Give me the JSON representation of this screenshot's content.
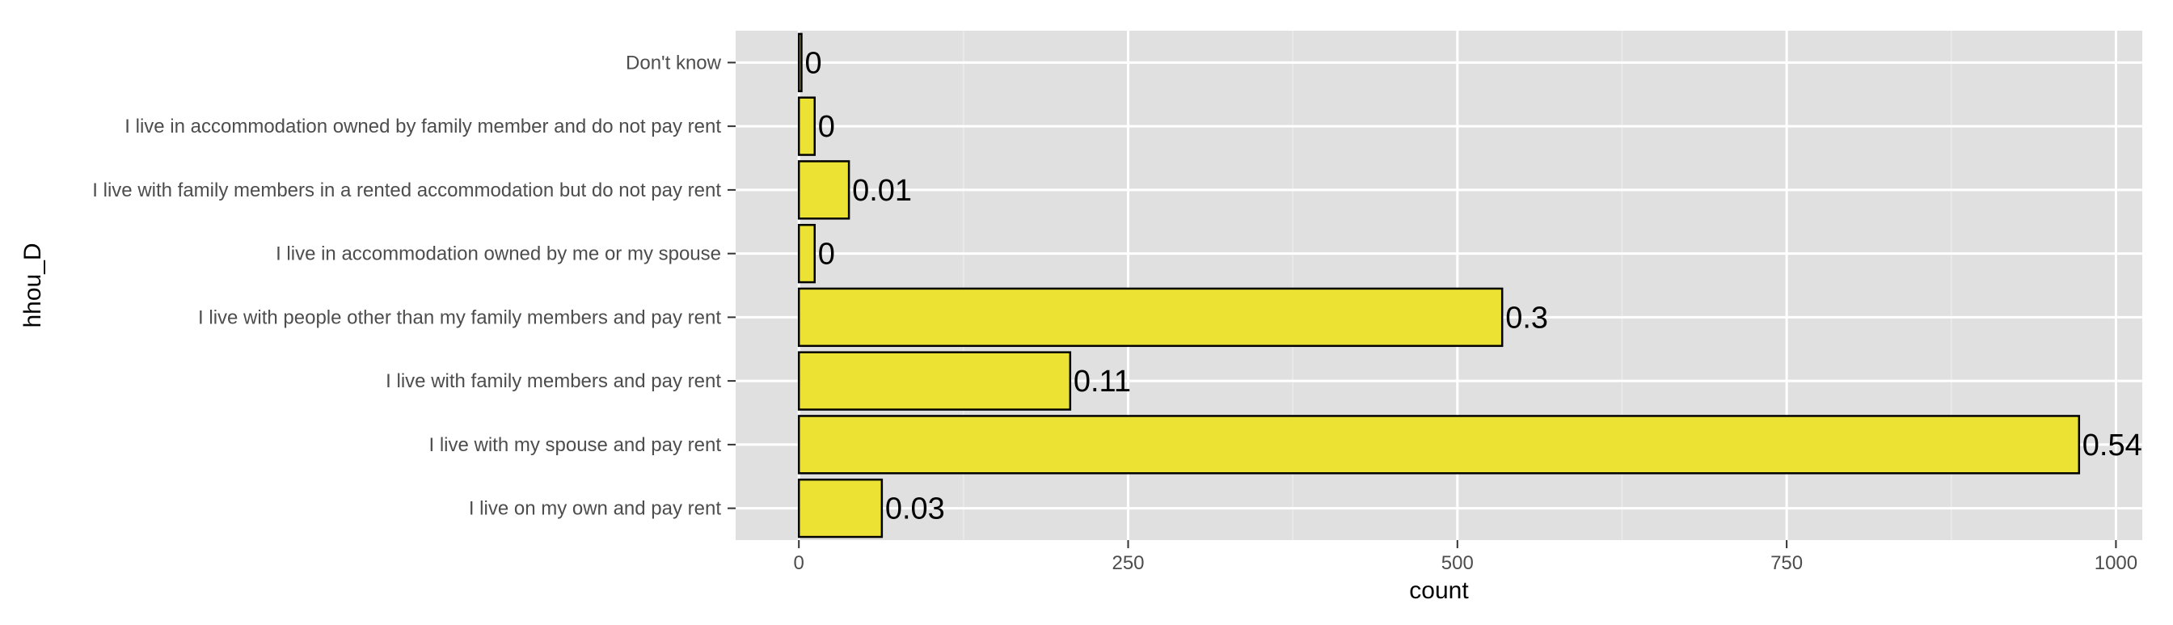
{
  "chart_data": {
    "type": "bar",
    "orientation": "horizontal",
    "categories": [
      "Don't know",
      "I live in accommodation owned by family member and do not pay rent",
      "I live with family members in a rented accommodation but do not pay rent",
      "I live in accommodation owned by me or my spouse",
      "I live with people other than my family members and pay rent",
      "I live with family members and pay rent",
      "I live with my spouse and pay rent",
      "I live on my own and pay  rent"
    ],
    "values": [
      2,
      12,
      38,
      12,
      534,
      206,
      972,
      63
    ],
    "data_labels": [
      "0",
      "0",
      "0.01",
      "0",
      "0.3",
      "0.11",
      "0.54",
      "0.03"
    ],
    "xlabel": "count",
    "ylabel": "hhou_D",
    "xlim": [
      -48,
      1020
    ],
    "x_ticks": [
      0,
      250,
      500,
      750,
      1000
    ],
    "x_tick_labels": [
      "0",
      "250",
      "500",
      "750",
      "1000"
    ],
    "grid": true,
    "legend": "none",
    "colors": {
      "bar_fill": "#ebe234",
      "bar_stroke": "#000000",
      "panel_background": "#e0e0e0",
      "grid_major": "#ffffff",
      "grid_minor": "#ebebeb"
    }
  }
}
